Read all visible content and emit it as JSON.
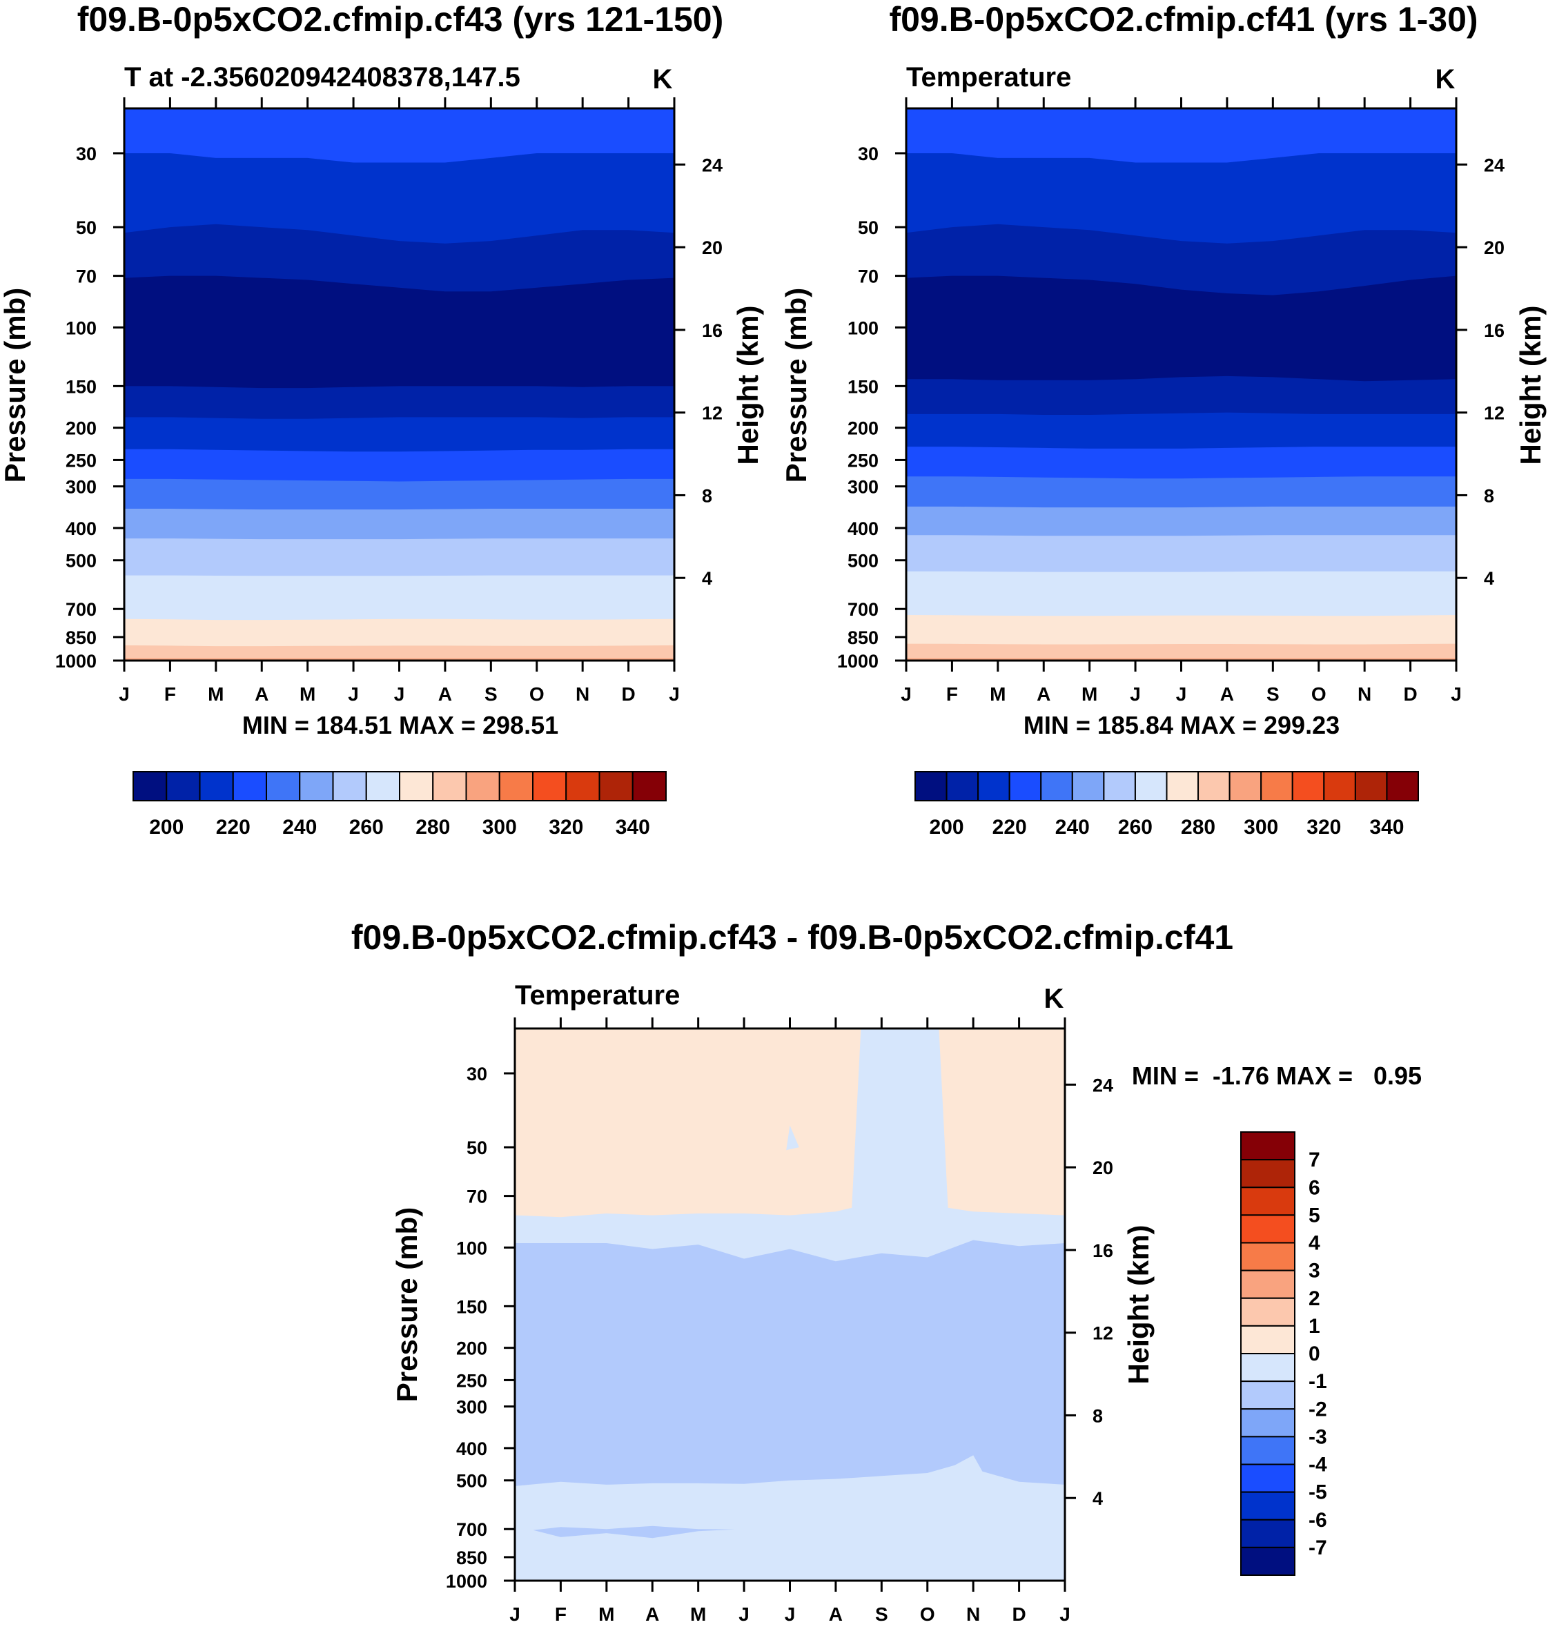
{
  "chart_data": [
    {
      "type": "heatmap",
      "panel": "top-left",
      "title": "f09.B-0p5xCO2.cfmip.cf43 (yrs 121-150)",
      "subtitle_left": "T at -2.356020942408378,147.5",
      "units": "K",
      "xlabel": "",
      "ylabel": "Pressure (mb)",
      "ylabel_right": "Height (km)",
      "months": [
        "J",
        "F",
        "M",
        "A",
        "M",
        "J",
        "J",
        "A",
        "S",
        "O",
        "N",
        "D",
        "J"
      ],
      "pressure_ticks": [
        30,
        50,
        70,
        100,
        150,
        200,
        250,
        300,
        400,
        500,
        700,
        850,
        1000
      ],
      "height_ticks": [
        24,
        20,
        16,
        12,
        8,
        4
      ],
      "ylim_mb": [
        22,
        1000
      ],
      "minmax_text": "MIN = 184.51 MAX = 298.51",
      "min": 184.51,
      "max": 298.51,
      "levels": [
        190,
        200,
        210,
        220,
        230,
        240,
        250,
        260,
        270,
        280,
        290,
        300,
        310,
        320,
        330,
        340
      ],
      "contour_boundaries": [
        {
          "between": [
            220,
            210
          ],
          "p_mb": [
            30,
            30,
            31,
            31,
            31,
            32,
            32,
            32,
            31,
            30,
            30,
            30,
            30
          ]
        },
        {
          "between": [
            210,
            200
          ],
          "p_mb": [
            52,
            50,
            49,
            50,
            51,
            53,
            55,
            56,
            55,
            53,
            51,
            51,
            52
          ]
        },
        {
          "between": [
            200,
            190
          ],
          "p_mb": [
            71,
            70,
            70,
            71,
            72,
            74,
            76,
            78,
            78,
            76,
            74,
            72,
            71
          ]
        },
        {
          "between": [
            190,
            200
          ],
          "p_mb": [
            150,
            150,
            151,
            152,
            152,
            151,
            150,
            150,
            150,
            150,
            151,
            150,
            150
          ]
        },
        {
          "between": [
            200,
            210
          ],
          "p_mb": [
            186,
            186,
            187,
            188,
            188,
            187,
            186,
            186,
            186,
            186,
            187,
            186,
            186
          ]
        },
        {
          "between": [
            210,
            220
          ],
          "p_mb": [
            232,
            232,
            233,
            234,
            235,
            236,
            236,
            235,
            234,
            233,
            233,
            232,
            232
          ]
        },
        {
          "between": [
            220,
            230
          ],
          "p_mb": [
            285,
            285,
            286,
            287,
            288,
            289,
            290,
            289,
            288,
            287,
            286,
            285,
            285
          ]
        },
        {
          "between": [
            230,
            240
          ],
          "p_mb": [
            350,
            350,
            351,
            352,
            352,
            352,
            352,
            351,
            350,
            350,
            350,
            350,
            350
          ]
        },
        {
          "between": [
            240,
            250
          ],
          "p_mb": [
            430,
            430,
            431,
            432,
            432,
            432,
            432,
            431,
            430,
            430,
            430,
            430,
            430
          ]
        },
        {
          "between": [
            250,
            260
          ],
          "p_mb": [
            555,
            555,
            556,
            557,
            557,
            557,
            557,
            556,
            555,
            555,
            555,
            555,
            555
          ]
        },
        {
          "between": [
            260,
            270
          ],
          "p_mb": [
            750,
            752,
            755,
            755,
            754,
            752,
            750,
            750,
            752,
            754,
            754,
            752,
            750
          ]
        },
        {
          "between": [
            270,
            280
          ],
          "p_mb": [
            900,
            902,
            905,
            905,
            904,
            903,
            902,
            902,
            903,
            904,
            904,
            902,
            900
          ]
        },
        {
          "between": [
            280,
            290
          ],
          "p_mb": [
            985,
            985,
            985,
            985,
            985,
            985,
            985,
            985,
            985,
            985,
            985,
            985,
            985
          ]
        }
      ],
      "colorbar": {
        "orientation": "horizontal",
        "labels": [
          "200",
          "220",
          "240",
          "260",
          "280",
          "300",
          "320",
          "340"
        ]
      }
    },
    {
      "type": "heatmap",
      "panel": "top-right",
      "title": "f09.B-0p5xCO2.cfmip.cf41 (yrs 1-30)",
      "subtitle_left": "Temperature",
      "units": "K",
      "xlabel": "",
      "ylabel": "Pressure (mb)",
      "ylabel_right": "Height (km)",
      "months": [
        "J",
        "F",
        "M",
        "A",
        "M",
        "J",
        "J",
        "A",
        "S",
        "O",
        "N",
        "D",
        "J"
      ],
      "pressure_ticks": [
        30,
        50,
        70,
        100,
        150,
        200,
        250,
        300,
        400,
        500,
        700,
        850,
        1000
      ],
      "height_ticks": [
        24,
        20,
        16,
        12,
        8,
        4
      ],
      "ylim_mb": [
        22,
        1000
      ],
      "minmax_text": "MIN = 185.84 MAX = 299.23",
      "min": 185.84,
      "max": 299.23,
      "levels": [
        190,
        200,
        210,
        220,
        230,
        240,
        250,
        260,
        270,
        280,
        290,
        300,
        310,
        320,
        330,
        340
      ],
      "contour_boundaries": [
        {
          "between": [
            220,
            210
          ],
          "p_mb": [
            30,
            30,
            31,
            31,
            31,
            32,
            32,
            32,
            31,
            30,
            30,
            30,
            30
          ]
        },
        {
          "between": [
            210,
            200
          ],
          "p_mb": [
            52,
            50,
            49,
            50,
            51,
            53,
            55,
            56,
            55,
            53,
            51,
            51,
            52
          ]
        },
        {
          "between": [
            200,
            190
          ],
          "p_mb": [
            71,
            70,
            70,
            71,
            72,
            74,
            77,
            79,
            80,
            78,
            75,
            72,
            70
          ]
        },
        {
          "between": [
            190,
            200
          ],
          "p_mb": [
            143,
            143,
            144,
            144,
            144,
            143,
            141,
            140,
            141,
            143,
            145,
            144,
            143
          ]
        },
        {
          "between": [
            200,
            210
          ],
          "p_mb": [
            182,
            182,
            182,
            183,
            183,
            182,
            181,
            180,
            181,
            182,
            182,
            182,
            182
          ]
        },
        {
          "between": [
            210,
            220
          ],
          "p_mb": [
            228,
            228,
            229,
            230,
            231,
            231,
            231,
            230,
            229,
            228,
            228,
            228,
            228
          ]
        },
        {
          "between": [
            220,
            230
          ],
          "p_mb": [
            280,
            280,
            281,
            282,
            283,
            284,
            284,
            283,
            282,
            281,
            280,
            280,
            280
          ]
        },
        {
          "between": [
            230,
            240
          ],
          "p_mb": [
            345,
            345,
            346,
            347,
            347,
            347,
            347,
            346,
            345,
            345,
            345,
            345,
            345
          ]
        },
        {
          "between": [
            240,
            250
          ],
          "p_mb": [
            420,
            420,
            421,
            422,
            422,
            422,
            422,
            421,
            420,
            420,
            420,
            420,
            420
          ]
        },
        {
          "between": [
            250,
            260
          ],
          "p_mb": [
            540,
            540,
            541,
            542,
            542,
            542,
            542,
            541,
            540,
            540,
            540,
            540,
            540
          ]
        },
        {
          "between": [
            260,
            270
          ],
          "p_mb": [
            730,
            731,
            733,
            734,
            734,
            733,
            732,
            732,
            733,
            734,
            734,
            732,
            730
          ]
        },
        {
          "between": [
            270,
            280
          ],
          "p_mb": [
            890,
            891,
            893,
            894,
            894,
            893,
            892,
            892,
            893,
            894,
            894,
            892,
            890
          ]
        },
        {
          "between": [
            280,
            290
          ],
          "p_mb": [
            985,
            985,
            985,
            985,
            985,
            985,
            985,
            985,
            985,
            985,
            985,
            985,
            985
          ]
        }
      ],
      "colorbar": {
        "orientation": "horizontal",
        "labels": [
          "200",
          "220",
          "240",
          "260",
          "280",
          "300",
          "320",
          "340"
        ]
      }
    },
    {
      "type": "heatmap",
      "panel": "bottom",
      "title": "f09.B-0p5xCO2.cfmip.cf43 - f09.B-0p5xCO2.cfmip.cf41",
      "subtitle_left": "Temperature",
      "units": "K",
      "xlabel": "",
      "ylabel": "Pressure (mb)",
      "ylabel_right": "Height (km)",
      "months": [
        "J",
        "F",
        "M",
        "A",
        "M",
        "J",
        "J",
        "A",
        "S",
        "O",
        "N",
        "D",
        "J"
      ],
      "pressure_ticks": [
        30,
        50,
        70,
        100,
        150,
        200,
        250,
        300,
        400,
        500,
        700,
        850,
        1000
      ],
      "height_ticks": [
        24,
        20,
        16,
        12,
        8,
        4
      ],
      "ylim_mb": [
        22,
        1000
      ],
      "minmax_text": "MIN =  -1.76 MAX =   0.95",
      "min": -1.76,
      "max": 0.95,
      "levels": [
        -7,
        -6,
        -5,
        -4,
        -3,
        -2,
        -1,
        0,
        1,
        2,
        3,
        4,
        5,
        6,
        7
      ],
      "regions": [
        {
          "range": [
            0,
            1
          ],
          "description": "upper stratosphere above ~80 mb except Sep-Oct"
        },
        {
          "range": [
            -1,
            0
          ],
          "description": "~80-100 mb band, Sep-Oct column, 500-1000 mb"
        },
        {
          "range": [
            -2,
            -1
          ],
          "description": "~100-500 mb band, small patch near 700 mb Jan-May"
        }
      ],
      "band_80_boundary_mb": [
        80,
        81,
        79,
        80,
        79,
        79,
        80,
        78,
        22,
        22,
        78,
        79,
        80
      ],
      "band_100_boundary_mb": [
        97,
        97,
        97,
        101,
        98,
        108,
        101,
        110,
        104,
        107,
        95,
        99,
        97
      ],
      "band_500_boundary_mb": [
        520,
        505,
        515,
        510,
        510,
        512,
        500,
        495,
        485,
        475,
        420,
        505,
        515
      ],
      "colorbar": {
        "orientation": "vertical",
        "labels": [
          "7",
          "6",
          "5",
          "4",
          "3",
          "2",
          "1",
          "0",
          "-1",
          "-2",
          "-3",
          "-4",
          "-5",
          "-6",
          "-7"
        ]
      }
    }
  ],
  "colors": {
    "c190": "#000F80",
    "c200": "#0022A8",
    "c210": "#0033CC",
    "c220": "#1A4DFF",
    "c230": "#3F75F7",
    "c240": "#7EA6F8",
    "c250": "#B2CAFC",
    "c260": "#D6E6FC",
    "c270": "#FDE7D6",
    "c280": "#FCC8AE",
    "c290": "#F9A37F",
    "c300": "#F77B48",
    "c310": "#F44E1F",
    "c320": "#D93A0E",
    "c330": "#AE2408",
    "c340": "#850006"
  }
}
